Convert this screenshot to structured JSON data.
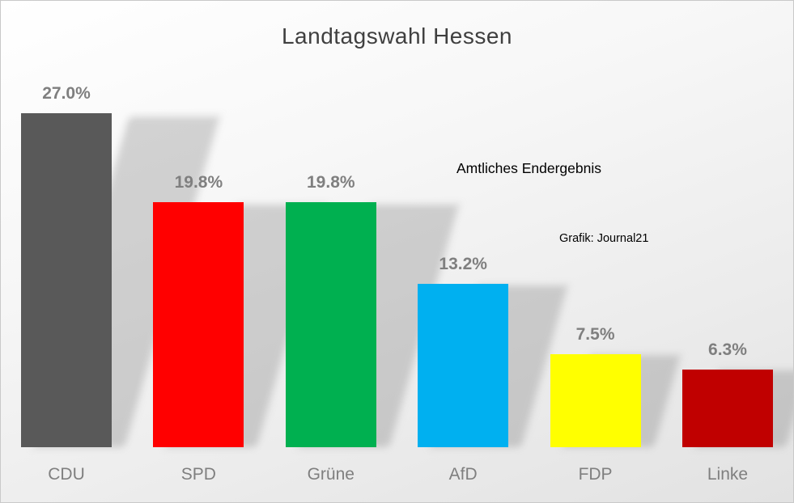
{
  "title": "Landtagswahl Hessen",
  "annotations": {
    "official_result": "Amtliches Endergebnis",
    "credit": "Grafik: Journal21"
  },
  "chart_data": {
    "type": "bar",
    "title": "Landtagswahl Hessen",
    "categories": [
      "CDU",
      "SPD",
      "Grüne",
      "AfD",
      "FDP",
      "Linke"
    ],
    "values": [
      27.0,
      19.8,
      19.8,
      13.2,
      7.5,
      6.3
    ],
    "value_labels": [
      "27.0%",
      "19.8%",
      "19.8%",
      "13.2%",
      "7.5%",
      "6.3%"
    ],
    "colors": [
      "#595959",
      "#ff0000",
      "#00b050",
      "#00b0f0",
      "#ffff00",
      "#c00000"
    ],
    "xlabel": "",
    "ylabel": "",
    "ylim": [
      0,
      30
    ],
    "grid": false,
    "legend": "none",
    "label_color": "#7f7f7f",
    "title_color": "#3f3f3f"
  }
}
